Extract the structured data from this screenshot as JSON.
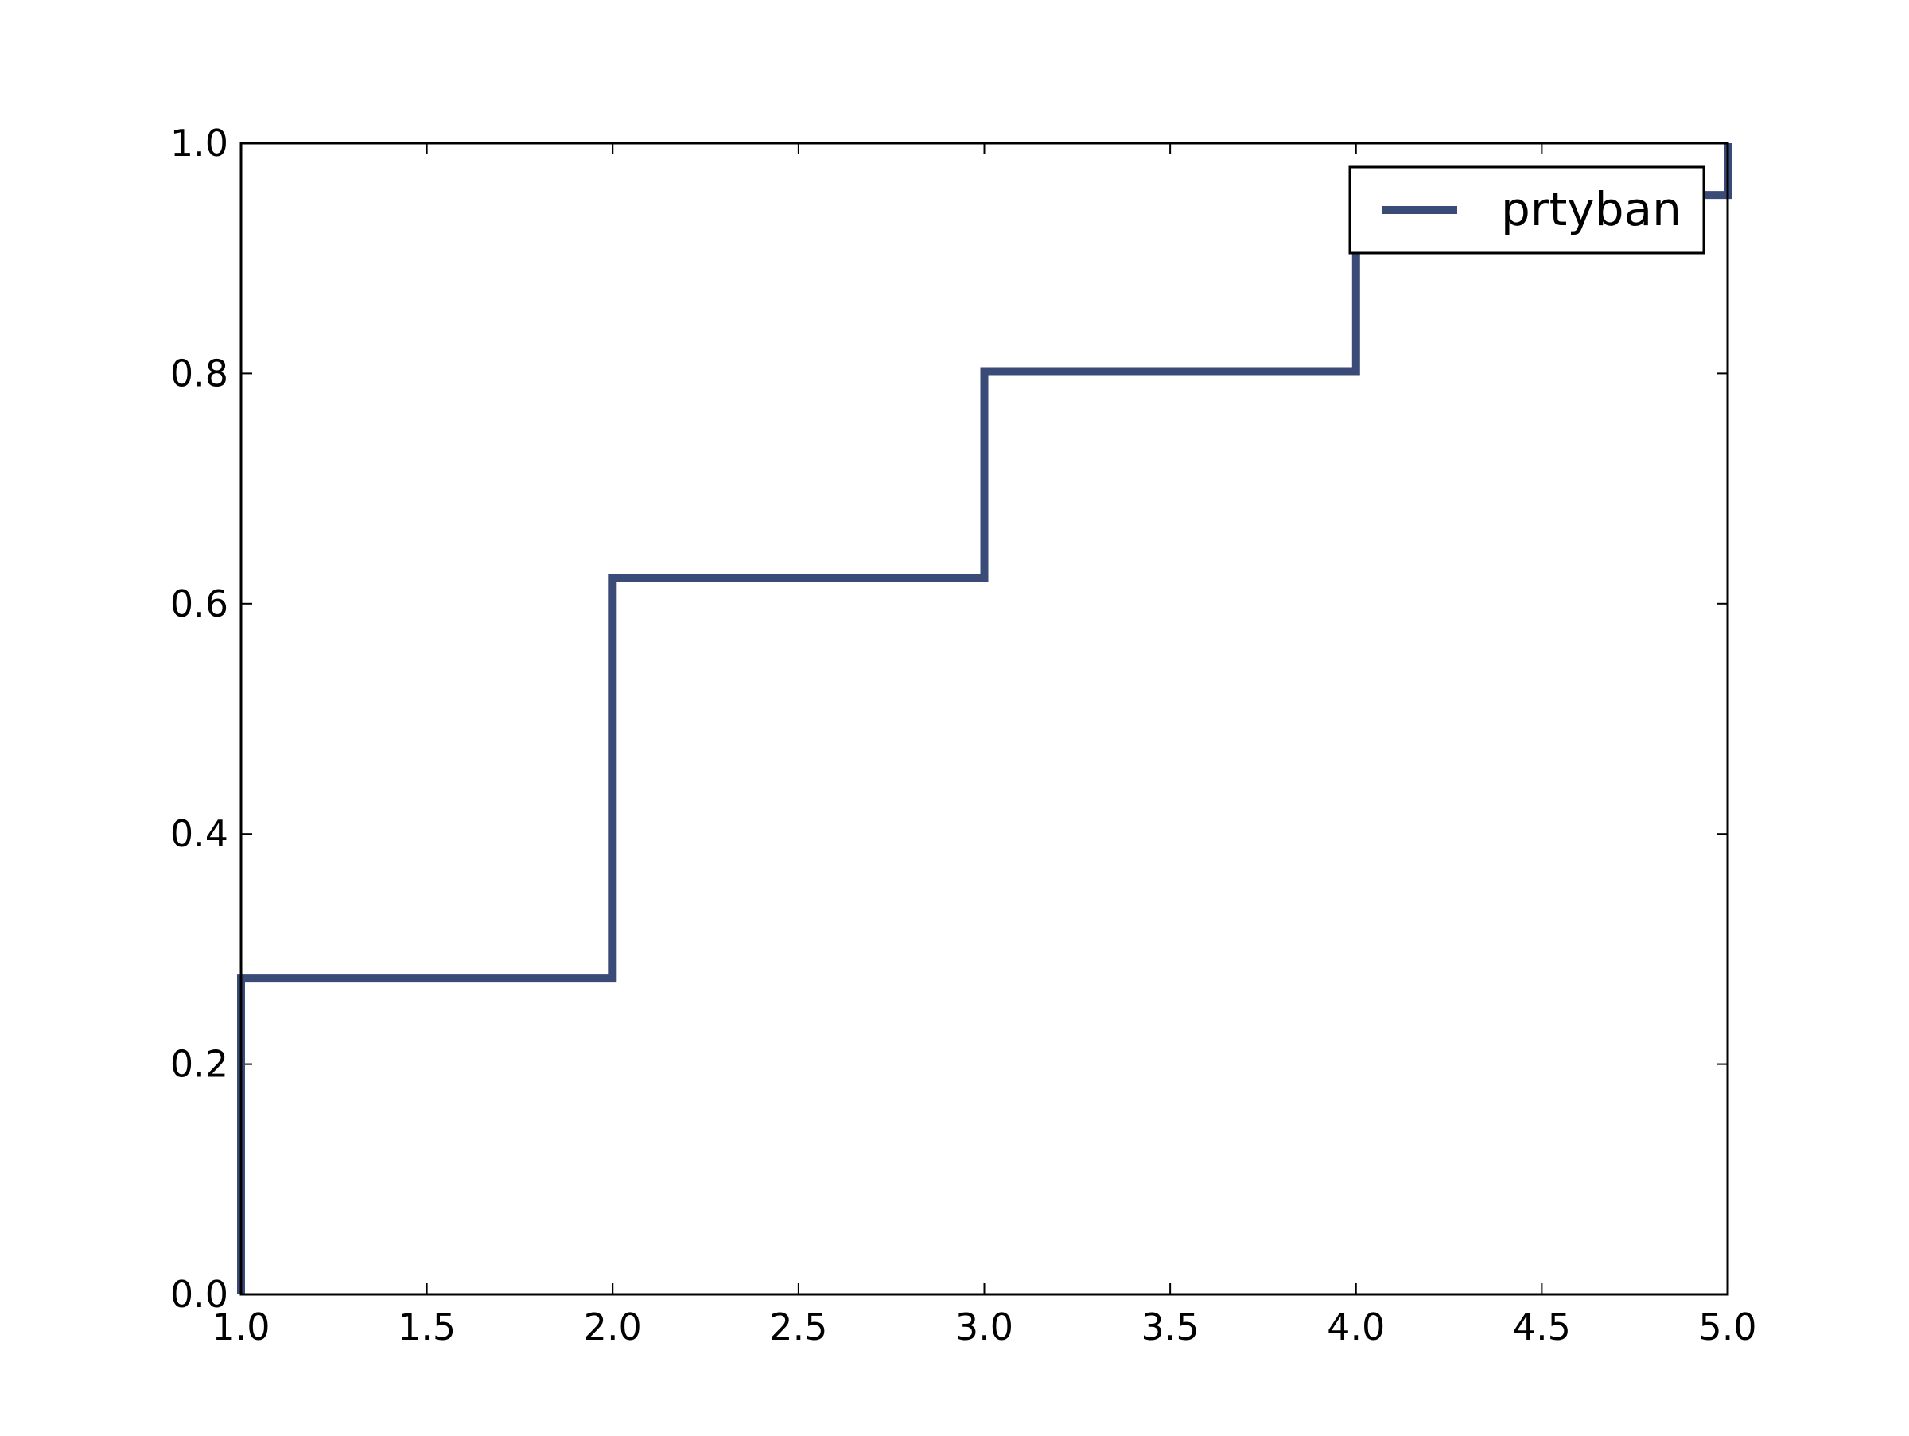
{
  "chart_data": {
    "type": "line",
    "step": "post",
    "title": "",
    "xlabel": "",
    "ylabel": "",
    "xlim": [
      1.0,
      5.0
    ],
    "ylim": [
      0.0,
      1.0
    ],
    "grid": false,
    "legend": {
      "placement": "top-right"
    },
    "x_ticks": [
      "1.0",
      "1.5",
      "2.0",
      "2.5",
      "3.0",
      "3.5",
      "4.0",
      "4.5",
      "5.0"
    ],
    "y_ticks": [
      "0.0",
      "0.2",
      "0.4",
      "0.6",
      "0.8",
      "1.0"
    ],
    "series": [
      {
        "name": "prtyban",
        "color": "#3b4b78",
        "x": [
          1.0,
          2.0,
          3.0,
          4.0,
          5.0
        ],
        "y": [
          0.275,
          0.622,
          0.802,
          0.955,
          1.0
        ]
      }
    ]
  }
}
